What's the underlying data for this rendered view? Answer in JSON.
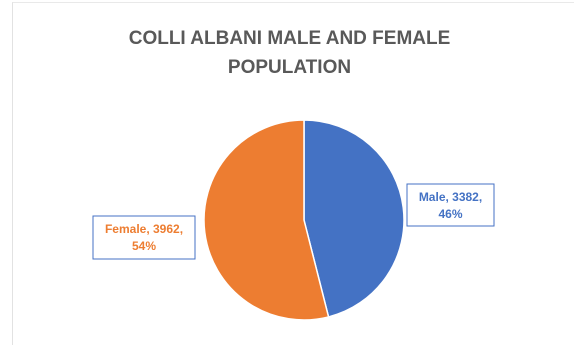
{
  "chart_data": {
    "type": "pie",
    "title_lines": [
      "COLLI ALBANI MALE AND FEMALE",
      "POPULATION"
    ],
    "slices": [
      {
        "label": "Male",
        "value": 3382,
        "percent": "46%",
        "color": "#4472C4"
      },
      {
        "label": "Female",
        "value": 3962,
        "percent": "54%",
        "color": "#ED7D31"
      }
    ],
    "data_labels": [
      {
        "lines": [
          "Male, 3382,",
          "46%"
        ]
      },
      {
        "lines": [
          "Female, 3962,",
          "54%"
        ]
      }
    ],
    "legend": false
  }
}
